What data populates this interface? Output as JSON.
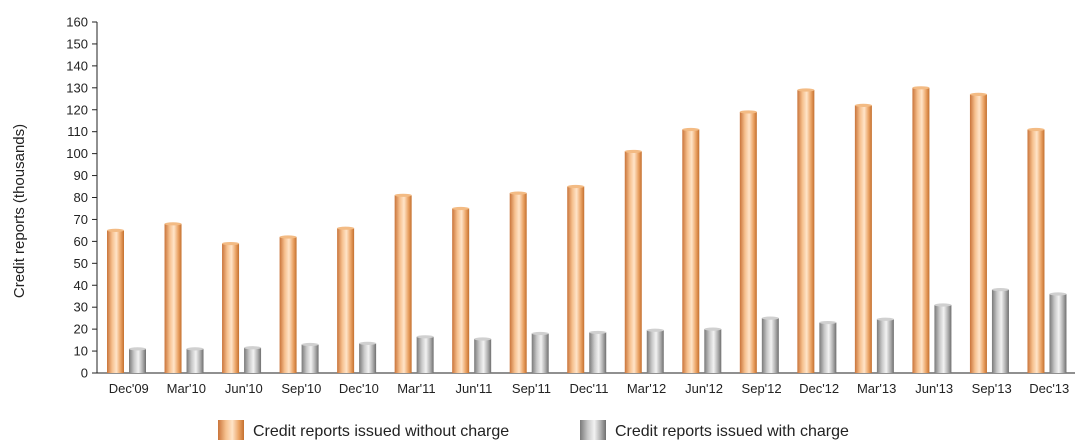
{
  "chart_data": {
    "type": "bar",
    "title": "",
    "xlabel": "",
    "ylabel": "Credit reports (thousands)",
    "ylim": [
      0,
      160
    ],
    "yticks": [
      0,
      10,
      20,
      30,
      40,
      50,
      60,
      70,
      80,
      90,
      100,
      110,
      120,
      130,
      140,
      150,
      160
    ],
    "grid": false,
    "legend_position": "bottom",
    "categories": [
      "Dec'09",
      "Mar'10",
      "Jun'10",
      "Sep'10",
      "Dec'10",
      "Mar'11",
      "Jun'11",
      "Sep'11",
      "Dec'11",
      "Mar'12",
      "Jun'12",
      "Sep'12",
      "Dec'12",
      "Mar'13",
      "Jun'13",
      "Sep'13",
      "Dec'13"
    ],
    "series": [
      {
        "name": "Credit reports issued without charge",
        "color": "#E8A060",
        "values": [
          65,
          68,
          59,
          62,
          66,
          81,
          75,
          82,
          85,
          101,
          111,
          119,
          129,
          122,
          130,
          127,
          111
        ]
      },
      {
        "name": "Credit reports issued with charge",
        "color": "#A8A8A8",
        "values": [
          11,
          11,
          11.5,
          13,
          13.5,
          16.5,
          15.5,
          18,
          18.5,
          19.5,
          20,
          25,
          23,
          24.5,
          31,
          38,
          36
        ]
      }
    ]
  }
}
